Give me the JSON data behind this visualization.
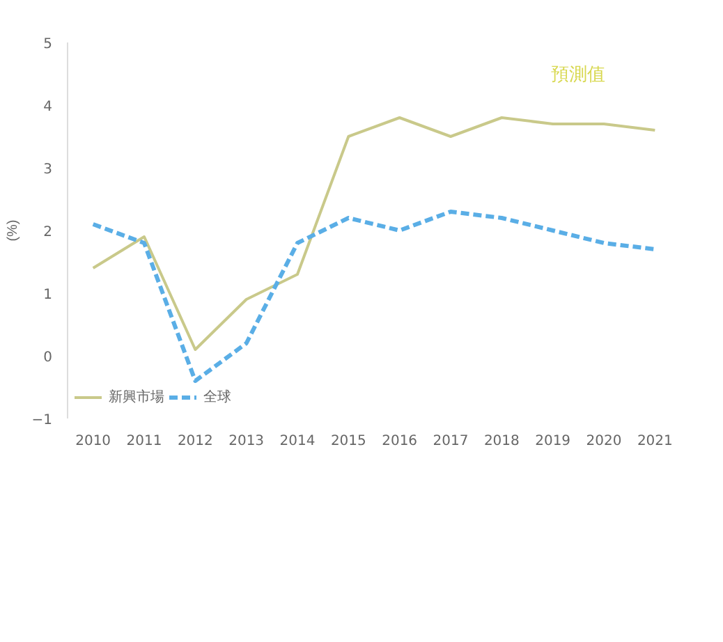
{
  "chart_data": {
    "type": "line",
    "ylabel": "(%)",
    "categories": [
      "2010",
      "2011",
      "2012",
      "2013",
      "2014",
      "2015",
      "2016",
      "2017",
      "2018",
      "2019",
      "2020",
      "2021"
    ],
    "series": [
      {
        "name": "新興市場",
        "color": "#c9c98a",
        "line_style": "solid",
        "values": [
          1.4,
          1.9,
          0.1,
          0.9,
          1.3,
          3.5,
          3.8,
          3.5,
          3.8,
          3.7,
          3.7,
          3.6
        ]
      },
      {
        "name": "全球",
        "color": "#5aaee6",
        "line_style": "dashed",
        "values": [
          2.1,
          1.8,
          -0.4,
          0.2,
          1.8,
          2.2,
          2.0,
          2.3,
          2.2,
          2.0,
          1.8,
          1.7
        ]
      }
    ],
    "ylim": [
      -1,
      5
    ],
    "yticks": [
      -1,
      0,
      1,
      2,
      3,
      4,
      5
    ],
    "grid": false,
    "legend": "bottom",
    "marker": "none",
    "annotations": [
      "預測值"
    ]
  }
}
